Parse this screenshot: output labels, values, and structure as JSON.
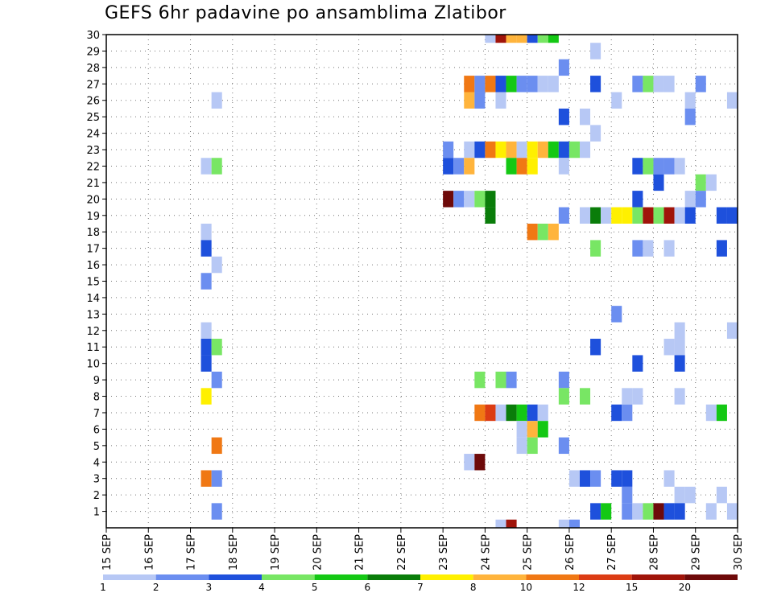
{
  "title": "GEFS 6hr padavine po ansamblima Zlatibor",
  "chart_data": {
    "type": "heatmap",
    "title": "GEFS 6hr padavine po ansamblima Zlatibor",
    "xlabel": "",
    "ylabel": "",
    "x_ticks": [
      "15 SEP",
      "16 SEP",
      "17 SEP",
      "18 SEP",
      "19 SEP",
      "20 SEP",
      "21 SEP",
      "22 SEP",
      "23 SEP",
      "24 SEP",
      "25 SEP",
      "26 SEP",
      "27 SEP",
      "28 SEP",
      "29 SEP",
      "30 SEP"
    ],
    "y_ticks": [
      "1",
      "2",
      "3",
      "4",
      "5",
      "6",
      "7",
      "8",
      "9",
      "10",
      "11",
      "12",
      "13",
      "14",
      "15",
      "16",
      "17",
      "18",
      "19",
      "20",
      "21",
      "22",
      "23",
      "24",
      "25",
      "26",
      "27",
      "28",
      "29",
      "30"
    ],
    "x_range_steps": [
      0,
      60
    ],
    "x_step_hours": 6,
    "y_range": [
      0,
      30
    ],
    "grid": true,
    "colorbar": {
      "labels": [
        "1",
        "2",
        "3",
        "4",
        "5",
        "6",
        "7",
        "8",
        "10",
        "12",
        "15",
        "20"
      ],
      "colors": [
        "#b7c8f5",
        "#6b8ef0",
        "#1e50dc",
        "#78e664",
        "#14c814",
        "#0a7d0a",
        "#fff000",
        "#ffb43c",
        "#f07814",
        "#dc3c14",
        "#a0140a",
        "#6e0a0a"
      ]
    },
    "cells": [
      [
        30,
        36,
        1
      ],
      [
        30,
        37,
        11
      ],
      [
        30,
        38,
        8
      ],
      [
        30,
        39,
        8
      ],
      [
        30,
        40,
        3
      ],
      [
        30,
        41,
        4
      ],
      [
        30,
        42,
        5
      ],
      [
        29,
        46,
        1
      ],
      [
        28,
        43,
        2
      ],
      [
        27,
        34,
        9
      ],
      [
        27,
        35,
        2
      ],
      [
        27,
        36,
        9
      ],
      [
        27,
        37,
        3
      ],
      [
        27,
        38,
        5
      ],
      [
        27,
        39,
        2
      ],
      [
        27,
        40,
        2
      ],
      [
        27,
        41,
        1
      ],
      [
        27,
        42,
        1
      ],
      [
        27,
        46,
        3
      ],
      [
        27,
        50,
        2
      ],
      [
        27,
        51,
        4
      ],
      [
        27,
        52,
        1
      ],
      [
        27,
        53,
        1
      ],
      [
        27,
        56,
        2
      ],
      [
        26,
        10,
        1
      ],
      [
        26,
        34,
        8
      ],
      [
        26,
        35,
        2
      ],
      [
        26,
        37,
        1
      ],
      [
        26,
        48,
        1
      ],
      [
        26,
        55,
        1
      ],
      [
        26,
        59,
        1
      ],
      [
        25,
        43,
        3
      ],
      [
        25,
        45,
        1
      ],
      [
        25,
        55,
        2
      ],
      [
        24,
        46,
        1
      ],
      [
        23,
        32,
        2
      ],
      [
        23,
        34,
        1
      ],
      [
        23,
        35,
        3
      ],
      [
        23,
        36,
        9
      ],
      [
        23,
        37,
        7
      ],
      [
        23,
        38,
        8
      ],
      [
        23,
        39,
        1
      ],
      [
        23,
        40,
        7
      ],
      [
        23,
        41,
        8
      ],
      [
        23,
        42,
        5
      ],
      [
        23,
        43,
        3
      ],
      [
        23,
        44,
        4
      ],
      [
        23,
        45,
        1
      ],
      [
        22,
        9,
        1
      ],
      [
        22,
        10,
        4
      ],
      [
        22,
        32,
        3
      ],
      [
        22,
        33,
        2
      ],
      [
        22,
        34,
        8
      ],
      [
        22,
        38,
        5
      ],
      [
        22,
        39,
        9
      ],
      [
        22,
        40,
        7
      ],
      [
        22,
        43,
        1
      ],
      [
        22,
        50,
        3
      ],
      [
        22,
        51,
        4
      ],
      [
        22,
        52,
        2
      ],
      [
        22,
        53,
        2
      ],
      [
        22,
        54,
        1
      ],
      [
        21,
        52,
        3
      ],
      [
        21,
        56,
        4
      ],
      [
        21,
        57,
        1
      ],
      [
        20,
        32,
        12
      ],
      [
        20,
        33,
        2
      ],
      [
        20,
        34,
        1
      ],
      [
        20,
        35,
        4
      ],
      [
        20,
        36,
        6
      ],
      [
        20,
        50,
        3
      ],
      [
        20,
        55,
        1
      ],
      [
        20,
        56,
        2
      ],
      [
        19,
        36,
        6
      ],
      [
        19,
        43,
        2
      ],
      [
        19,
        45,
        1
      ],
      [
        19,
        46,
        6
      ],
      [
        19,
        47,
        1
      ],
      [
        19,
        48,
        7
      ],
      [
        19,
        49,
        7
      ],
      [
        19,
        50,
        4
      ],
      [
        19,
        51,
        11
      ],
      [
        19,
        52,
        4
      ],
      [
        19,
        53,
        11
      ],
      [
        19,
        54,
        1
      ],
      [
        19,
        55,
        3
      ],
      [
        19,
        58,
        3
      ],
      [
        19,
        59,
        3
      ],
      [
        18,
        9,
        1
      ],
      [
        18,
        40,
        9
      ],
      [
        18,
        41,
        4
      ],
      [
        18,
        42,
        8
      ],
      [
        17,
        9,
        3
      ],
      [
        17,
        46,
        4
      ],
      [
        17,
        50,
        2
      ],
      [
        17,
        51,
        1
      ],
      [
        17,
        53,
        1
      ],
      [
        17,
        58,
        3
      ],
      [
        16,
        10,
        1
      ],
      [
        15,
        9,
        2
      ],
      [
        13,
        48,
        2
      ],
      [
        12,
        9,
        1
      ],
      [
        12,
        54,
        1
      ],
      [
        12,
        59,
        1
      ],
      [
        11,
        9,
        3
      ],
      [
        11,
        10,
        4
      ],
      [
        11,
        46,
        3
      ],
      [
        11,
        53,
        1
      ],
      [
        11,
        54,
        1
      ],
      [
        10,
        9,
        3
      ],
      [
        10,
        50,
        3
      ],
      [
        10,
        54,
        3
      ],
      [
        9,
        10,
        2
      ],
      [
        9,
        35,
        4
      ],
      [
        9,
        37,
        4
      ],
      [
        9,
        38,
        2
      ],
      [
        9,
        43,
        2
      ],
      [
        8,
        9,
        7
      ],
      [
        8,
        43,
        4
      ],
      [
        8,
        45,
        4
      ],
      [
        8,
        49,
        1
      ],
      [
        8,
        50,
        1
      ],
      [
        8,
        54,
        1
      ],
      [
        7,
        35,
        9
      ],
      [
        7,
        36,
        10
      ],
      [
        7,
        37,
        1
      ],
      [
        7,
        38,
        6
      ],
      [
        7,
        39,
        5
      ],
      [
        7,
        40,
        3
      ],
      [
        7,
        41,
        1
      ],
      [
        7,
        48,
        3
      ],
      [
        7,
        49,
        2
      ],
      [
        7,
        57,
        1
      ],
      [
        7,
        58,
        5
      ],
      [
        6,
        39,
        1
      ],
      [
        6,
        40,
        8
      ],
      [
        6,
        41,
        5
      ],
      [
        5,
        10,
        9
      ],
      [
        5,
        39,
        1
      ],
      [
        5,
        40,
        4
      ],
      [
        5,
        43,
        2
      ],
      [
        4,
        34,
        1
      ],
      [
        4,
        35,
        12
      ],
      [
        3,
        9,
        9
      ],
      [
        3,
        10,
        2
      ],
      [
        3,
        44,
        1
      ],
      [
        3,
        45,
        3
      ],
      [
        3,
        46,
        2
      ],
      [
        3,
        48,
        3
      ],
      [
        3,
        49,
        3
      ],
      [
        3,
        53,
        1
      ],
      [
        2,
        49,
        2
      ],
      [
        2,
        54,
        1
      ],
      [
        2,
        55,
        1
      ],
      [
        2,
        58,
        1
      ],
      [
        1,
        10,
        2
      ],
      [
        1,
        46,
        3
      ],
      [
        1,
        47,
        5
      ],
      [
        1,
        49,
        2
      ],
      [
        1,
        50,
        1
      ],
      [
        1,
        51,
        4
      ],
      [
        1,
        52,
        12
      ],
      [
        1,
        53,
        3
      ],
      [
        1,
        54,
        3
      ],
      [
        1,
        57,
        1
      ],
      [
        1,
        59,
        1
      ],
      [
        0,
        37,
        1
      ],
      [
        0,
        38,
        11
      ],
      [
        0,
        43,
        1
      ],
      [
        0,
        44,
        2
      ]
    ]
  }
}
